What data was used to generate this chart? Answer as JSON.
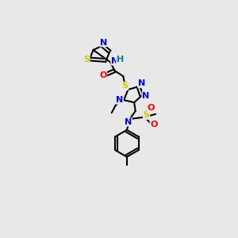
{
  "background_color": "#e8e8e8",
  "bond_color": "#000000",
  "atom_colors": {
    "N": "#0000ff",
    "S": "#cccc00",
    "O": "#ff0000",
    "C": "#000000",
    "H": "#008080"
  }
}
